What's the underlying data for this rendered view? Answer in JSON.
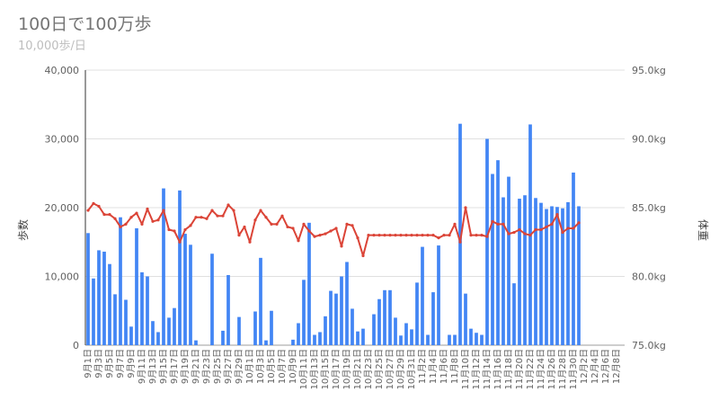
{
  "header": {
    "title": "100日で100万歩",
    "subtitle": "10,000歩/日"
  },
  "chart_data": {
    "type": "bar+line",
    "title": "100日で100万歩",
    "subtitle": "10,000歩/日",
    "ylabel_left": "歩数",
    "ylabel_right": "体重",
    "ylim_left": [
      0,
      40000
    ],
    "ylim_right": [
      75.0,
      95.0
    ],
    "yticks_left": [
      "0",
      "10,000",
      "20,000",
      "30,000",
      "40,000"
    ],
    "yticks_right": [
      "75.0kg",
      "80.0kg",
      "85.0kg",
      "90.0kg",
      "95.0kg"
    ],
    "gridlines": true,
    "x_labels_shown": [
      "9月1日",
      "9月3日",
      "9月5日",
      "9月7日",
      "9月9日",
      "9月11日",
      "9月13日",
      "9月15日",
      "9月17日",
      "9月19日",
      "9月21日",
      "9月23日",
      "9月25日",
      "9月27日",
      "9月29日",
      "10月1日",
      "10月3日",
      "10月5日",
      "10月7日",
      "10月9日",
      "10月11日",
      "10月13日",
      "10月15日",
      "10月17日",
      "10月19日",
      "10月21日",
      "10月23日",
      "10月25日",
      "10月27日",
      "10月29日",
      "10月31日",
      "11月2日",
      "11月4日",
      "11月6日",
      "11月8日",
      "11月10日",
      "11月12日",
      "11月14日",
      "11月16日",
      "11月18日",
      "11月20日",
      "11月22日",
      "11月24日",
      "11月26日",
      "11月28日",
      "11月30日",
      "12月2日",
      "12月4日",
      "12月6日",
      "12月8日"
    ],
    "series": [
      {
        "type": "bar",
        "color": "#4285f4",
        "values": [
          16300,
          9700,
          13800,
          13600,
          11800,
          7400,
          18600,
          6600,
          2700,
          17000,
          10600,
          10000,
          3500,
          1900,
          22800,
          4000,
          5400,
          22500,
          16200,
          14600,
          700,
          0,
          0,
          13300,
          0,
          2100,
          10200,
          0,
          4100,
          0,
          0,
          4900,
          12700,
          700,
          5000,
          0,
          0,
          0,
          800,
          3200,
          9500,
          17800,
          1500,
          1900,
          4200,
          7900,
          7500,
          10000,
          12100,
          5300,
          2000,
          2400,
          0,
          4500,
          6700,
          8000,
          8000,
          4000,
          1400,
          3200,
          2300,
          9100,
          14300,
          1500,
          7700,
          14500,
          0,
          1500,
          1500,
          32200,
          7500,
          2400,
          1800,
          1500,
          30000,
          24900,
          26900,
          21500,
          24500,
          9000,
          21300,
          21800,
          32100,
          21400,
          20700,
          19800,
          20200,
          20100,
          19900,
          20800,
          25100,
          20200,
          0,
          0,
          0,
          0,
          0,
          0,
          0,
          0
        ]
      },
      {
        "type": "line",
        "color": "#db4437",
        "values": [
          84.8,
          85.3,
          85.1,
          84.5,
          84.5,
          84.2,
          83.6,
          83.8,
          84.3,
          84.6,
          83.8,
          84.9,
          84.0,
          84.1,
          84.8,
          83.4,
          83.3,
          82.5,
          83.4,
          83.7,
          84.3,
          84.3,
          84.2,
          84.8,
          84.4,
          84.4,
          85.2,
          84.8,
          83.0,
          83.6,
          82.5,
          84.1,
          84.8,
          84.3,
          83.8,
          83.8,
          84.4,
          83.6,
          83.5,
          82.6,
          83.8,
          83.3,
          82.9,
          83.0,
          83.1,
          83.3,
          83.5,
          82.2,
          83.8,
          83.7,
          82.8,
          81.5,
          83.0,
          83.0,
          83.0,
          83.0,
          83.0,
          83.0,
          83.0,
          83.0,
          83.0,
          83.0,
          83.0,
          83.0,
          83.0,
          82.8,
          83.0,
          83.0,
          83.8,
          82.5,
          85.0,
          83.0,
          83.0,
          83.0,
          82.9,
          84.0,
          83.8,
          83.8,
          83.1,
          83.2,
          83.4,
          83.1,
          83.0,
          83.4,
          83.4,
          83.6,
          83.8,
          84.5,
          83.2,
          83.5,
          83.5,
          83.9
        ]
      }
    ]
  }
}
